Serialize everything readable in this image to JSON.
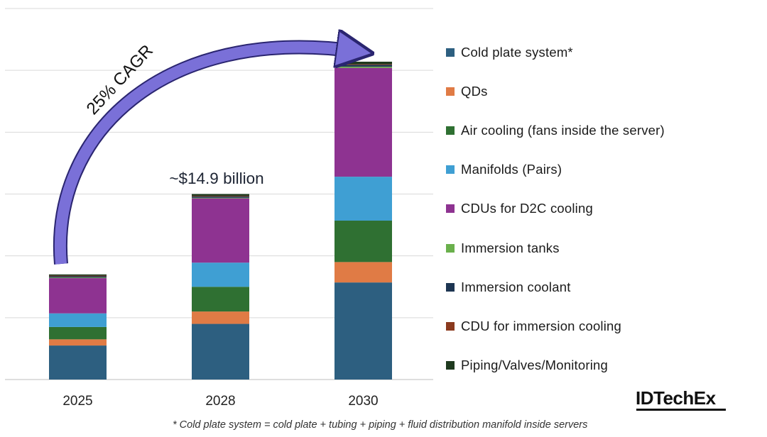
{
  "chart_data": {
    "type": "bar",
    "stacked": true,
    "categories": [
      "2025",
      "2028",
      "2030"
    ],
    "ylim": [
      0,
      6
    ],
    "grid": true,
    "legend_position": "right",
    "series": [
      {
        "name": "Cold plate system*",
        "color": "#2d5f80",
        "values": [
          0.55,
          0.9,
          1.57
        ]
      },
      {
        "name": "QDs",
        "color": "#e07b45",
        "values": [
          0.1,
          0.2,
          0.33
        ]
      },
      {
        "name": "Air cooling (fans inside the server)",
        "color": "#2f7032",
        "values": [
          0.2,
          0.4,
          0.67
        ]
      },
      {
        "name": "Manifolds (Pairs)",
        "color": "#3f9fd3",
        "values": [
          0.22,
          0.39,
          0.71
        ]
      },
      {
        "name": "CDUs for D2C cooling",
        "color": "#8e3391",
        "values": [
          0.57,
          1.04,
          1.76
        ]
      },
      {
        "name": "Immersion tanks",
        "color": "#6ab04c",
        "values": [
          0.01,
          0.01,
          0.02
        ]
      },
      {
        "name": "Immersion coolant",
        "color": "#1d3552",
        "values": [
          0.02,
          0.02,
          0.03
        ]
      },
      {
        "name": "CDU for immersion cooling",
        "color": "#8b3a1e",
        "values": [
          0.01,
          0.01,
          0.01
        ]
      },
      {
        "name": "Piping/Valves/Monitoring",
        "color": "#1f3a1f",
        "values": [
          0.02,
          0.03,
          0.04
        ]
      }
    ],
    "annotations": {
      "bar_label": {
        "category": "2028",
        "text": "~$14.9 billion"
      },
      "cagr_label": "25% CAGR",
      "arrow_color": "#7a70d8"
    }
  },
  "footnote": "* Cold plate system = cold plate + tubing + piping + fluid distribution manifold inside servers",
  "logo": "IDTechEx"
}
